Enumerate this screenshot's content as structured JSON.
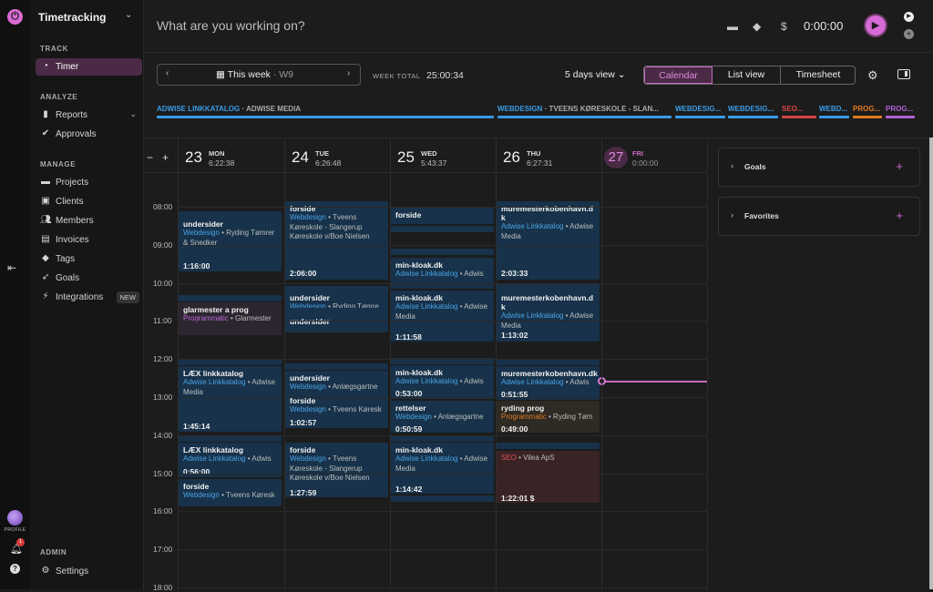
{
  "rail": {
    "profile_label": "PROFILE",
    "notif_count": "1",
    "help": "?"
  },
  "sidebar": {
    "workspace": "Timetracking",
    "sections": {
      "track": "TRACK",
      "analyze": "ANALYZE",
      "manage": "MANAGE",
      "admin": "ADMIN"
    },
    "items": {
      "timer": "Timer",
      "reports": "Reports",
      "approvals": "Approvals",
      "projects": "Projects",
      "clients": "Clients",
      "members": "Members",
      "invoices": "Invoices",
      "tags": "Tags",
      "goals": "Goals",
      "integrations": "Integrations",
      "integrations_badge": "NEW",
      "settings": "Settings"
    }
  },
  "timer": {
    "placeholder": "What are you working on?",
    "time": "0:00:00",
    "billable_icon": "$"
  },
  "toolbar": {
    "week_label": "This week",
    "week_num": "· W9",
    "week_total_label": "WEEK TOTAL",
    "week_total": "25:00:34",
    "days_view": "5 days view",
    "tabs": [
      "Calendar",
      "List view",
      "Timesheet"
    ]
  },
  "project_bar": [
    {
      "name": "ADWISE LINKKATALOG",
      "client": "· ADWISE MEDIA",
      "color": "#3a9be6"
    },
    {
      "name": "WEBDESIGN",
      "client": "· TVEENS KØRESKOLE - SLAN...",
      "color": "#3a9be6"
    },
    {
      "name": "WEBDESIG...",
      "client": "",
      "color": "#3a9be6"
    },
    {
      "name": "WEBDESIG...",
      "client": "",
      "color": "#3a9be6"
    },
    {
      "name": "SEO...",
      "client": "",
      "color": "#d64545"
    },
    {
      "name": "WEBD...",
      "client": "",
      "color": "#3a9be6"
    },
    {
      "name": "PROG...",
      "client": "",
      "color": "#e07a1f"
    },
    {
      "name": "PROG...",
      "client": "",
      "color": "#b160d8"
    }
  ],
  "calendar": {
    "days": [
      {
        "num": "23",
        "dow": "MON",
        "total": "6:22:38"
      },
      {
        "num": "24",
        "dow": "TUE",
        "total": "6:26:48"
      },
      {
        "num": "25",
        "dow": "WED",
        "total": "5:43:37"
      },
      {
        "num": "26",
        "dow": "THU",
        "total": "6:27:31"
      },
      {
        "num": "27",
        "dow": "FRI",
        "total": "0:00:00"
      }
    ],
    "hours": [
      "08:00",
      "09:00",
      "10:00",
      "11:00",
      "12:00",
      "13:00",
      "14:00",
      "15:00",
      "16:00",
      "17:00",
      "18:00"
    ],
    "events": {
      "mon": [
        {
          "title": "undersider",
          "project": "Webdesign",
          "client": "• Ryding Tømrer & Snedker",
          "duration": "1:16:00"
        },
        {
          "title": "glarmester a prog",
          "project": "Programmatic",
          "client": "• Glarmester"
        },
        {
          "title": "LÆX linkkatalog",
          "project": "Adwise Linkkatalog",
          "client": "• Adwise Media",
          "duration": "1:45:14"
        },
        {
          "title": "LÆX linkkatalog",
          "project": "Adwise Linkkatalog",
          "client": "• Adwis",
          "duration": "0:56:00"
        },
        {
          "title": "forside",
          "project": "Webdesign",
          "client": "• Tveens Køresk"
        }
      ],
      "tue": [
        {
          "title": "forside",
          "project": "Webdesign",
          "client": "• Tveens Køreskole - Slangerup Køreskole v/Boe Nielsen",
          "duration": "2:06:00"
        },
        {
          "title": "undersider",
          "project": "Webdesign",
          "client": "• Ryding Tømre"
        },
        {
          "title": "undersider"
        },
        {
          "title": "undersider",
          "project": "Webdesign",
          "client": "• Anlægsgartne"
        },
        {
          "title": "forside",
          "project": "Webdesign",
          "client": "• Tveens Køresk",
          "duration": "1:02:57"
        },
        {
          "title": "forside",
          "project": "Webdesign",
          "client": "• Tveens Køreskole - Slangerup Køreskole v/Boe Nielsen",
          "duration": "1:27:59"
        }
      ],
      "wed": [
        {
          "title": "forside"
        },
        {
          "title": "min-kloak.dk",
          "project": "Adwise Linkkatalog",
          "client": "• Adwis"
        },
        {
          "title": "min-kloak.dk",
          "project": "Adwise Linkkatalog",
          "client": "• Adwise Media",
          "duration": "1:11:58"
        },
        {
          "title": "min-kloak.dk",
          "project": "Adwise Linkkatalog",
          "client": "• Adwis",
          "duration": "0:53:00"
        },
        {
          "title": "rettelser",
          "project": "Webdesign",
          "client": "• Anlægsgartne",
          "duration": "0:50:59"
        },
        {
          "title": "min-kloak.dk",
          "project": "Adwise Linkkatalog",
          "client": "• Adwise Media",
          "duration": "1:14:42"
        }
      ],
      "thu": [
        {
          "title": "muremesterkobenhavn.d k",
          "project": "Adwise Linkkatalog",
          "client": "• Adwise Media",
          "duration": "2:03:33"
        },
        {
          "title": "muremesterkobenhavn.d k",
          "project": "Adwise Linkkatalog",
          "client": "• Adwise Media",
          "duration": "1:13:02"
        },
        {
          "title": "muremesterkobenhavn.dk",
          "project": "Adwise Linkkatalog",
          "client": "• Adwis",
          "duration": "0:51:55"
        },
        {
          "title": "ryding prog",
          "project": "Programmatic",
          "client": "• Ryding Tøm",
          "duration": "0:49:00"
        },
        {
          "project": "SEO",
          "client": "• Vilea ApS",
          "duration": "1:22:01",
          "billable": "$"
        }
      ]
    }
  },
  "right_panel": {
    "goals": "Goals",
    "favorites": "Favorites"
  }
}
